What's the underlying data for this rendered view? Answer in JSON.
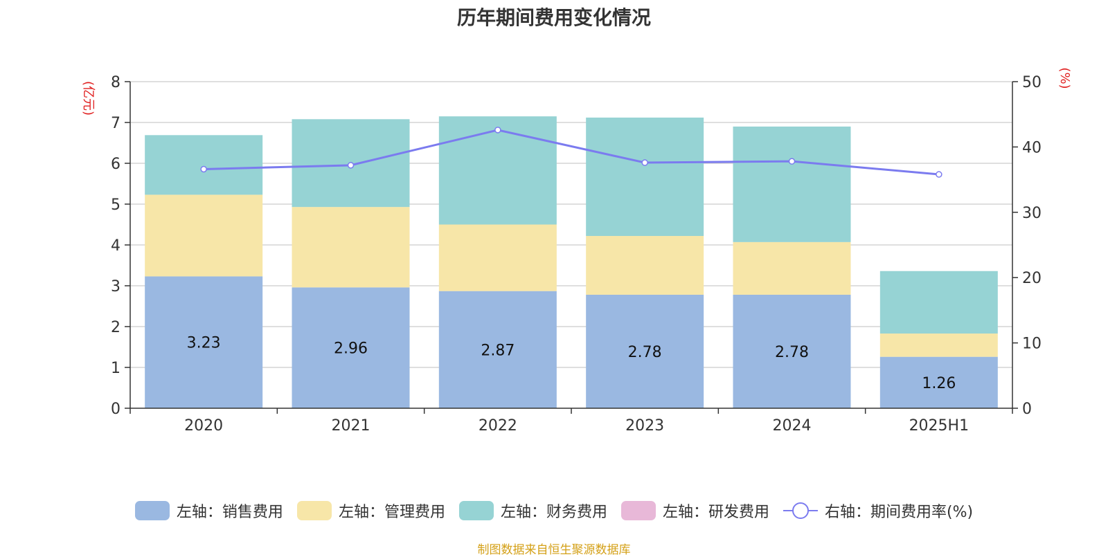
{
  "chart_data": {
    "type": "bar",
    "title": "历年期间费用变化情况",
    "categories": [
      "2020",
      "2021",
      "2022",
      "2023",
      "2024",
      "2025H1"
    ],
    "left_axis": {
      "unit_label": "(亿元)",
      "ylim": [
        0,
        8
      ],
      "ticks": [
        "0",
        "1",
        "2",
        "3",
        "4",
        "5",
        "6",
        "7",
        "8"
      ]
    },
    "right_axis": {
      "unit_label": "(%)",
      "ylim": [
        0,
        50
      ],
      "ticks": [
        "0",
        "10",
        "20",
        "30",
        "40",
        "50"
      ]
    },
    "stacked": true,
    "grid": true,
    "legend_position": "bottom",
    "series": [
      {
        "name": "左轴：销售费用",
        "type": "bar",
        "axis": "left",
        "color": "#9ab8e1",
        "values": [
          3.23,
          2.96,
          2.87,
          2.78,
          2.78,
          1.26
        ],
        "data_labels": [
          "3.23",
          "2.96",
          "2.87",
          "2.78",
          "2.78",
          "1.26"
        ]
      },
      {
        "name": "左轴：管理费用",
        "type": "bar",
        "axis": "left",
        "color": "#f7e6a8",
        "values": [
          2.0,
          1.97,
          1.63,
          1.44,
          1.29,
          0.57
        ]
      },
      {
        "name": "左轴：财务费用",
        "type": "bar",
        "axis": "left",
        "color": "#96d3d4",
        "values": [
          1.46,
          2.15,
          2.65,
          2.9,
          2.83,
          1.53
        ]
      },
      {
        "name": "左轴：研发费用",
        "type": "bar",
        "axis": "left",
        "color": "#e8b8d8",
        "values": [
          0,
          0,
          0,
          0,
          0,
          0
        ]
      },
      {
        "name": "右轴：期间费用率(%)",
        "type": "line",
        "axis": "right",
        "color": "#7b7bef",
        "values": [
          36.6,
          37.2,
          42.6,
          37.6,
          37.8,
          35.8
        ]
      }
    ],
    "source": "制图数据来自恒生聚源数据库"
  }
}
